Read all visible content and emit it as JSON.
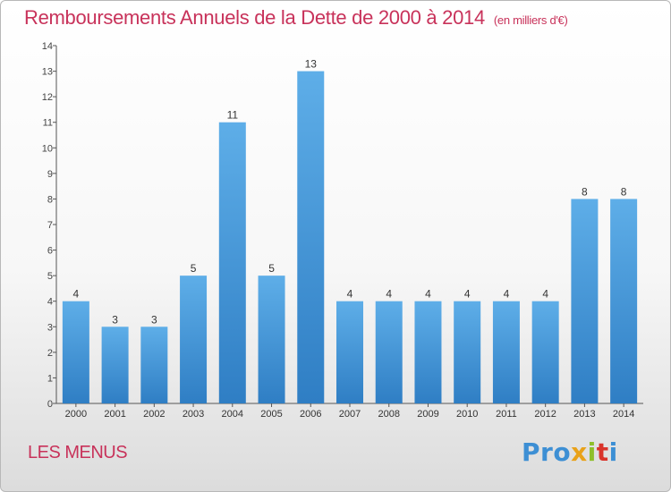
{
  "header": {
    "title": "Remboursements Annuels de la Dette de 2000 à 2014",
    "subtitle": "(en milliers d'€)"
  },
  "footer": {
    "location": "LES MENUS",
    "brand": [
      "Pro",
      "x",
      "i",
      "t",
      "i"
    ]
  },
  "colors": {
    "bar_top": "#5eaee8",
    "bar_bottom": "#2f7ec4",
    "title": "#c8325a"
  },
  "chart_data": {
    "type": "bar",
    "title": "Remboursements Annuels de la Dette de 2000 à 2014",
    "subtitle": "(en milliers d'€)",
    "xlabel": "",
    "ylabel": "",
    "categories": [
      "2000",
      "2001",
      "2002",
      "2003",
      "2004",
      "2005",
      "2006",
      "2007",
      "2008",
      "2009",
      "2010",
      "2011",
      "2012",
      "2013",
      "2014"
    ],
    "values": [
      4,
      3,
      3,
      5,
      11,
      5,
      13,
      4,
      4,
      4,
      4,
      4,
      4,
      8,
      8
    ],
    "data_labels": [
      "4",
      "3",
      "3",
      "5",
      "11",
      "5",
      "13",
      "4",
      "4",
      "4",
      "4",
      "4",
      "4",
      "8",
      "8"
    ],
    "ylim": [
      0,
      14
    ],
    "yticks": [
      "0",
      "1",
      "2",
      "3",
      "4",
      "5",
      "6",
      "7",
      "8",
      "9",
      "10",
      "11",
      "12",
      "13",
      "14"
    ],
    "grid": false,
    "legend": "none"
  }
}
